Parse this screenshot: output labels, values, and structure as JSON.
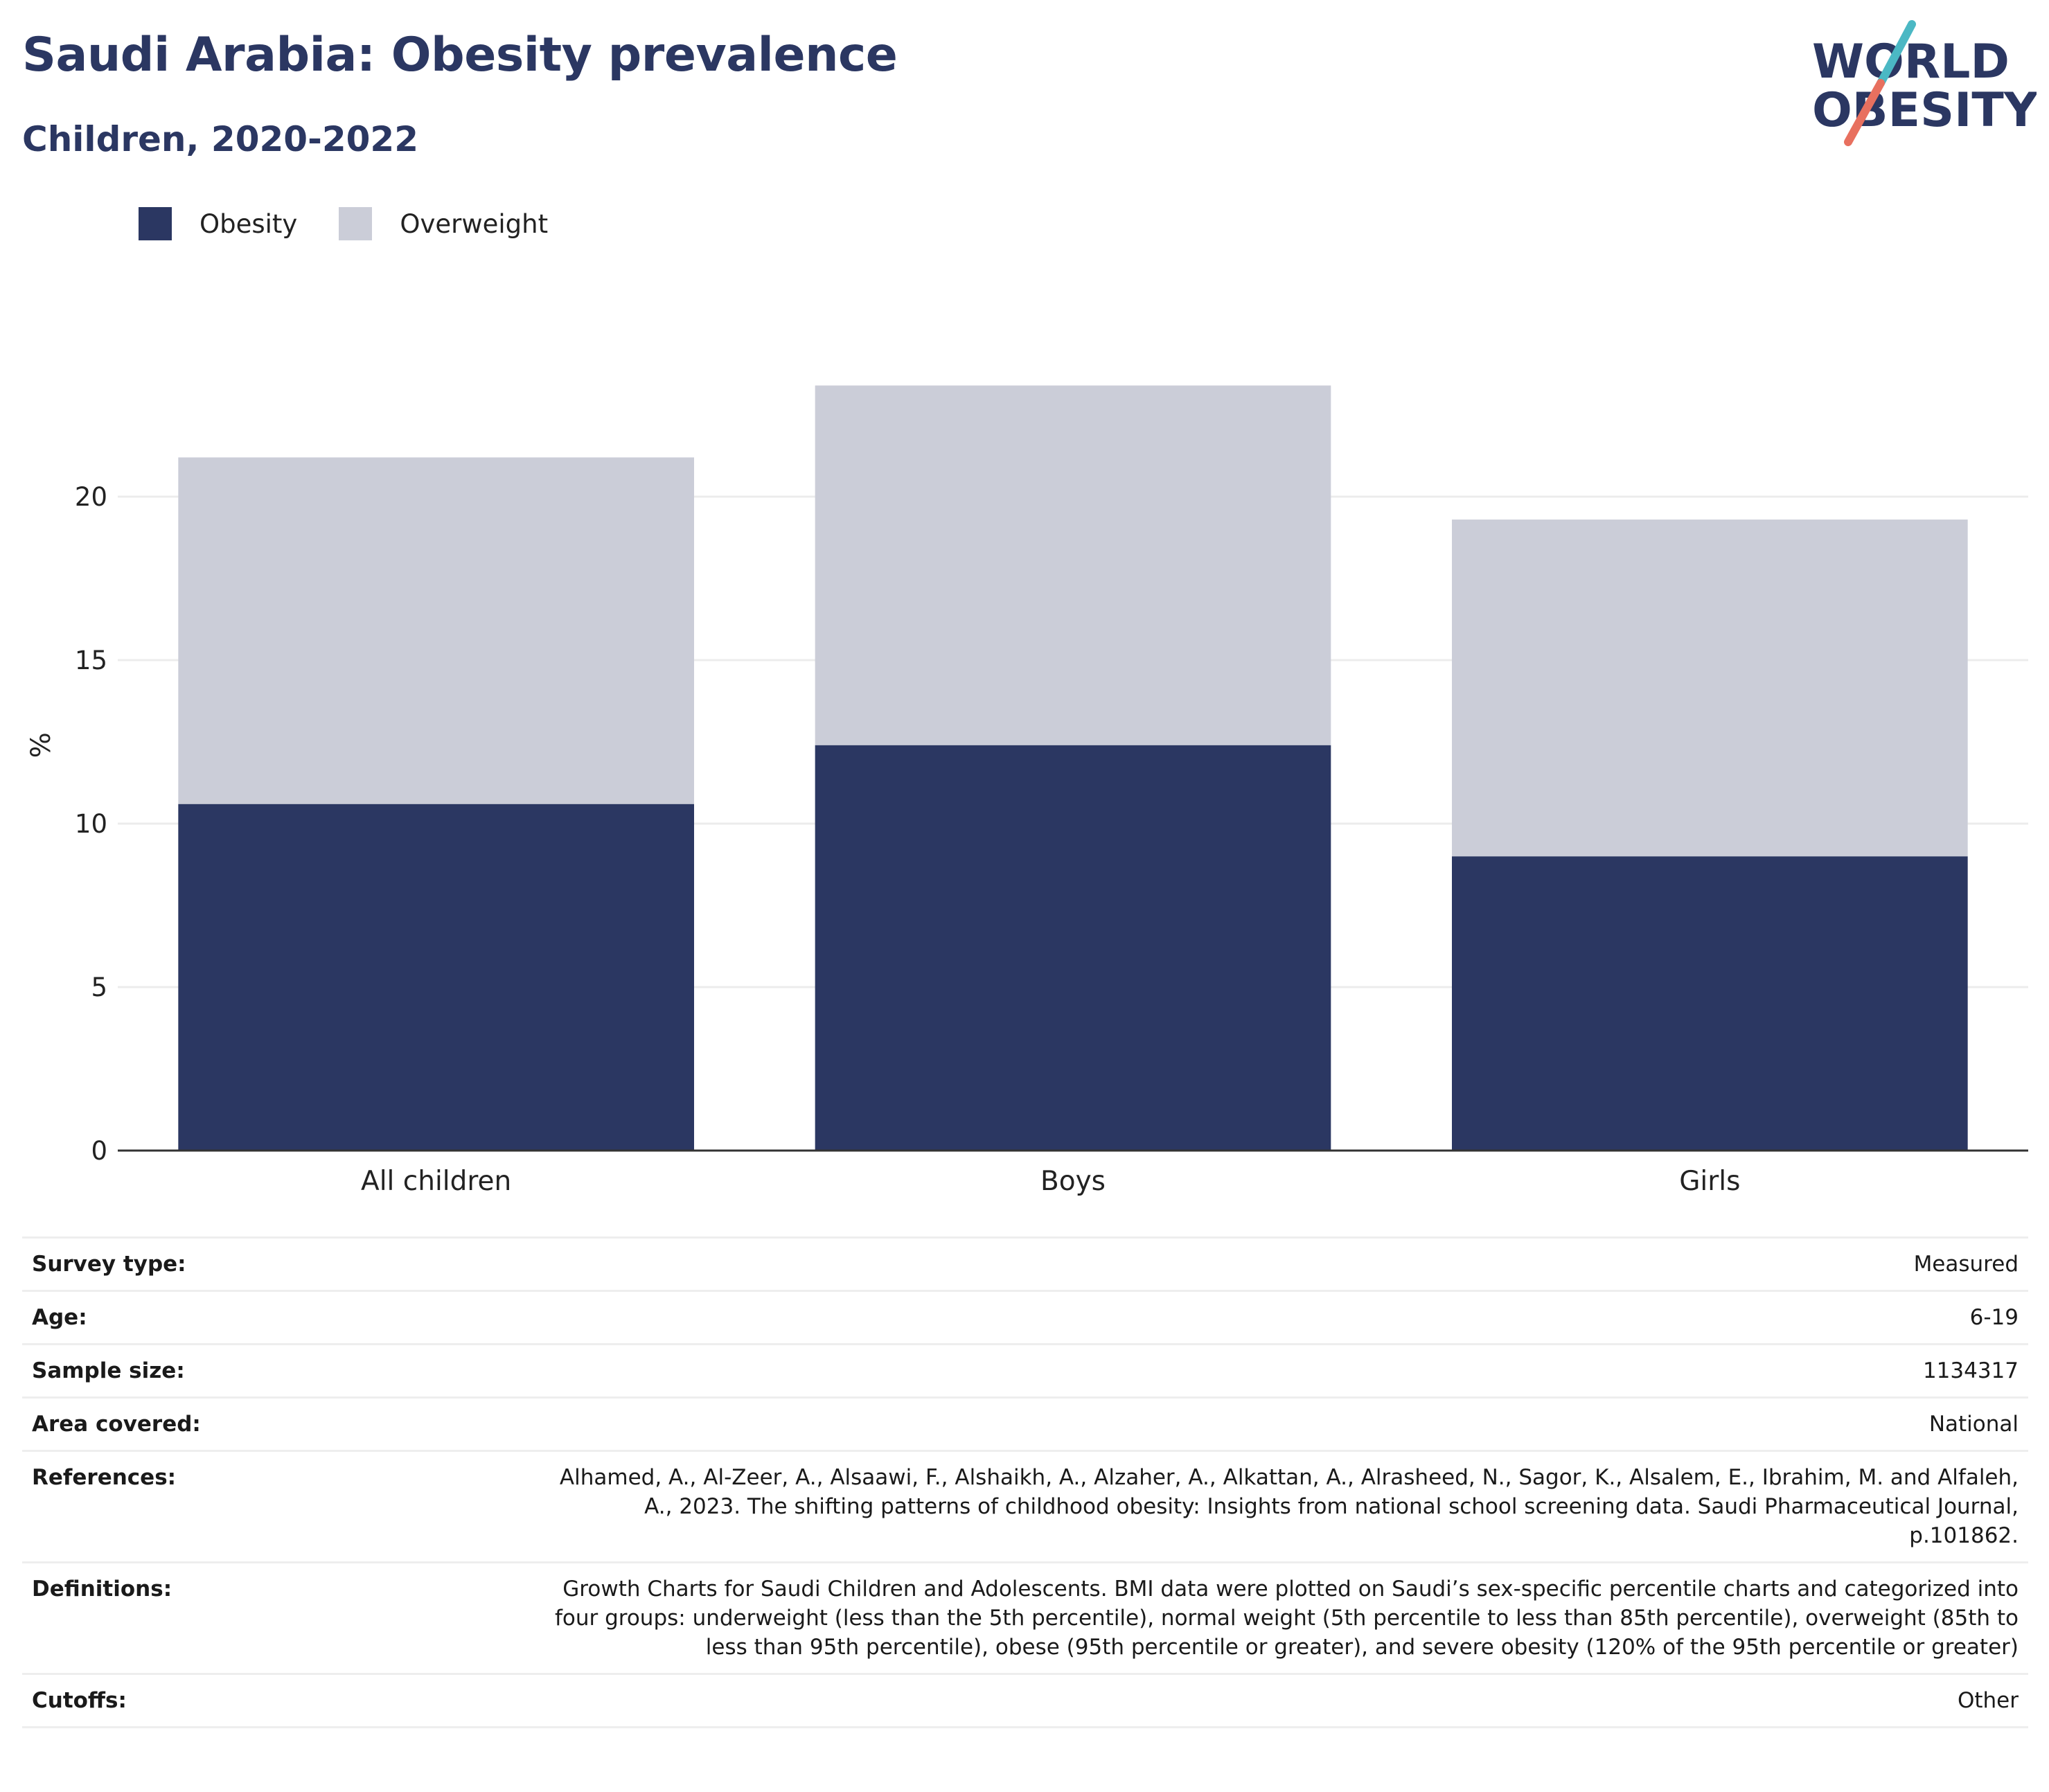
{
  "header": {
    "title": "Saudi Arabia: Obesity prevalence",
    "subtitle": "Children, 2020-2022"
  },
  "logo": {
    "line1": "WORLD",
    "line2": "OBESITY",
    "slash_colors": [
      "#4bb8c4",
      "#e8705f"
    ]
  },
  "legend": [
    {
      "label": "Obesity",
      "color": "#2b3762"
    },
    {
      "label": "Overweight",
      "color": "#cbcdd8"
    }
  ],
  "chart_data": {
    "type": "bar",
    "stacked": true,
    "categories": [
      "All children",
      "Boys",
      "Girls"
    ],
    "series": [
      {
        "name": "Obesity",
        "color": "#2b3762",
        "values": [
          10.6,
          12.4,
          9.0
        ]
      },
      {
        "name": "Overweight",
        "color": "#cbcdd8",
        "values": [
          10.6,
          11.0,
          10.3
        ]
      }
    ],
    "ylabel": "%",
    "yticks": [
      0,
      5,
      10,
      15,
      20
    ],
    "ylim": [
      0,
      28
    ],
    "grid": true,
    "legend_position": "top-left"
  },
  "info": [
    {
      "label": "Survey type:",
      "value": "Measured"
    },
    {
      "label": "Age:",
      "value": "6-19"
    },
    {
      "label": "Sample size:",
      "value": "1134317"
    },
    {
      "label": "Area covered:",
      "value": "National"
    },
    {
      "label": "References:",
      "value": "Alhamed, A., Al-Zeer, A., Alsaawi, F., Alshaikh, A., Alzaher, A., Alkattan, A., Alrasheed, N., Sagor, K., Alsalem, E., Ibrahim, M. and Alfaleh, A., 2023. The shifting patterns of childhood obesity: Insights from national school screening data. Saudi Pharmaceutical Journal, p.101862."
    },
    {
      "label": "Definitions:",
      "value": "Growth Charts for Saudi Children and Adolescents. BMI data were plotted on Saudi’s sex-specific percentile charts and categorized into four groups: underweight (less than the 5th percentile), normal weight (5th percentile to less than 85th percentile), overweight (85th to less than 95th percentile), obese (95th percentile or greater), and severe obesity (120% of the 95th percentile or greater)"
    },
    {
      "label": "Cutoffs:",
      "value": "Other"
    }
  ]
}
